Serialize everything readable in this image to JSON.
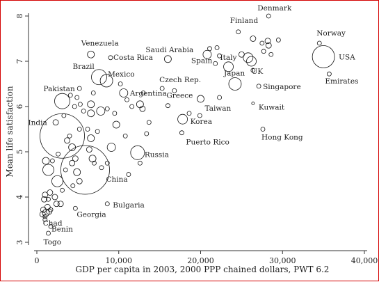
{
  "chart_data": {
    "type": "scatter",
    "title": "",
    "xlabel": "GDP per capita in 2003, 2000 PPP chained dollars, PWT 6.2",
    "ylabel": "Mean life satisfaction",
    "xlim": [
      0,
      40000
    ],
    "ylim": [
      3,
      8.2
    ],
    "xticks": [
      0,
      10000,
      20000,
      30000,
      40000
    ],
    "xtick_labels": [
      "0",
      "10,000",
      "20,000",
      "30,000",
      "40,000"
    ],
    "yticks": [
      3,
      4,
      5,
      6,
      7,
      8
    ],
    "ytick_labels": [
      "3",
      "4",
      "5",
      "6",
      "7",
      "8"
    ],
    "grid": false,
    "marker": "hollow circle sized by population",
    "labeled_points": [
      {
        "label": "Denmark",
        "x": 28300,
        "y": 8.0,
        "size": 3
      },
      {
        "label": "Finland",
        "x": 24600,
        "y": 7.65,
        "size": 3
      },
      {
        "label": "Norway",
        "x": 34500,
        "y": 7.4,
        "size": 3
      },
      {
        "label": "USA",
        "x": 35000,
        "y": 7.1,
        "size": 16
      },
      {
        "label": "Emirates",
        "x": 35700,
        "y": 6.72,
        "size": 3
      },
      {
        "label": "Saudi Arabia",
        "x": 16000,
        "y": 7.05,
        "size": 5
      },
      {
        "label": "Spain",
        "x": 20800,
        "y": 7.15,
        "size": 6
      },
      {
        "label": "Italy",
        "x": 23400,
        "y": 6.88,
        "size": 7
      },
      {
        "label": "UK",
        "x": 26200,
        "y": 7.0,
        "size": 7
      },
      {
        "label": "Japan",
        "x": 24200,
        "y": 6.5,
        "size": 9
      },
      {
        "label": "Singapore",
        "x": 27100,
        "y": 6.45,
        "size": 3
      },
      {
        "label": "Kuwait",
        "x": 26400,
        "y": 6.07,
        "size": 2
      },
      {
        "label": "Hong Kong",
        "x": 27600,
        "y": 5.5,
        "size": 3
      },
      {
        "label": "Venezuela",
        "x": 6600,
        "y": 7.15,
        "size": 5
      },
      {
        "label": "Costa Rica",
        "x": 9000,
        "y": 7.08,
        "size": 3
      },
      {
        "label": "Brazil",
        "x": 7600,
        "y": 6.65,
        "size": 11
      },
      {
        "label": "Mexico",
        "x": 8500,
        "y": 6.57,
        "size": 9
      },
      {
        "label": "Argentina",
        "x": 10600,
        "y": 6.3,
        "size": 6
      },
      {
        "label": "Czech Rep.",
        "x": 15300,
        "y": 6.4,
        "size": 3
      },
      {
        "label": "Greece",
        "x": 16000,
        "y": 6.02,
        "size": 3
      },
      {
        "label": "Taiwan",
        "x": 20000,
        "y": 6.17,
        "size": 5
      },
      {
        "label": "Korea",
        "x": 17800,
        "y": 5.72,
        "size": 7
      },
      {
        "label": "Puerto Rico",
        "x": 17700,
        "y": 5.42,
        "size": 3
      },
      {
        "label": "Russia",
        "x": 12300,
        "y": 4.98,
        "size": 10
      },
      {
        "label": "Pakistan",
        "x": 3100,
        "y": 6.12,
        "size": 11
      },
      {
        "label": "India",
        "x": 3100,
        "y": 5.35,
        "size": 32
      },
      {
        "label": "China",
        "x": 5900,
        "y": 4.6,
        "size": 35
      },
      {
        "label": "Bulgaria",
        "x": 8600,
        "y": 3.85,
        "size": 3
      },
      {
        "label": "Georgia",
        "x": 4700,
        "y": 3.75,
        "size": 3
      },
      {
        "label": "Chad",
        "x": 1000,
        "y": 3.57,
        "size": 3
      },
      {
        "label": "Benin",
        "x": 1700,
        "y": 3.35,
        "size": 3
      },
      {
        "label": "Togo",
        "x": 1400,
        "y": 3.2,
        "size": 3
      }
    ],
    "unlabeled_points": [
      {
        "x": 27500,
        "y": 7.4,
        "size": 3
      },
      {
        "x": 28200,
        "y": 7.45,
        "size": 4
      },
      {
        "x": 28300,
        "y": 7.35,
        "size": 4
      },
      {
        "x": 29500,
        "y": 7.47,
        "size": 3
      },
      {
        "x": 26400,
        "y": 7.5,
        "size": 4
      },
      {
        "x": 27700,
        "y": 7.22,
        "size": 3
      },
      {
        "x": 28600,
        "y": 7.15,
        "size": 3
      },
      {
        "x": 25800,
        "y": 7.08,
        "size": 7
      },
      {
        "x": 25000,
        "y": 7.15,
        "size": 4
      },
      {
        "x": 22000,
        "y": 7.3,
        "size": 3
      },
      {
        "x": 22300,
        "y": 7.12,
        "size": 3
      },
      {
        "x": 21800,
        "y": 6.95,
        "size": 3
      },
      {
        "x": 26400,
        "y": 6.8,
        "size": 3
      },
      {
        "x": 22300,
        "y": 6.2,
        "size": 3
      },
      {
        "x": 21100,
        "y": 7.28,
        "size": 3
      },
      {
        "x": 16800,
        "y": 6.35,
        "size": 3
      },
      {
        "x": 18600,
        "y": 5.85,
        "size": 3
      },
      {
        "x": 19900,
        "y": 5.8,
        "size": 3
      },
      {
        "x": 13000,
        "y": 6.3,
        "size": 3
      },
      {
        "x": 12600,
        "y": 6.05,
        "size": 5
      },
      {
        "x": 12900,
        "y": 5.95,
        "size": 4
      },
      {
        "x": 11600,
        "y": 6.0,
        "size": 3
      },
      {
        "x": 10200,
        "y": 6.5,
        "size": 3
      },
      {
        "x": 11000,
        "y": 6.15,
        "size": 3
      },
      {
        "x": 13700,
        "y": 5.65,
        "size": 3
      },
      {
        "x": 13400,
        "y": 5.4,
        "size": 3
      },
      {
        "x": 10800,
        "y": 5.35,
        "size": 3
      },
      {
        "x": 9100,
        "y": 5.1,
        "size": 6
      },
      {
        "x": 9700,
        "y": 5.6,
        "size": 5
      },
      {
        "x": 9500,
        "y": 5.85,
        "size": 3
      },
      {
        "x": 8600,
        "y": 5.95,
        "size": 3
      },
      {
        "x": 6600,
        "y": 6.05,
        "size": 5
      },
      {
        "x": 6600,
        "y": 5.85,
        "size": 5
      },
      {
        "x": 7800,
        "y": 5.9,
        "size": 6
      },
      {
        "x": 6900,
        "y": 6.3,
        "size": 3
      },
      {
        "x": 5200,
        "y": 6.4,
        "size": 3
      },
      {
        "x": 4900,
        "y": 6.2,
        "size": 3
      },
      {
        "x": 5300,
        "y": 6.05,
        "size": 3
      },
      {
        "x": 4600,
        "y": 6.0,
        "size": 3
      },
      {
        "x": 5700,
        "y": 5.9,
        "size": 3
      },
      {
        "x": 6200,
        "y": 5.5,
        "size": 3
      },
      {
        "x": 6600,
        "y": 5.3,
        "size": 5
      },
      {
        "x": 6400,
        "y": 5.05,
        "size": 4
      },
      {
        "x": 7400,
        "y": 5.45,
        "size": 3
      },
      {
        "x": 7900,
        "y": 4.65,
        "size": 3
      },
      {
        "x": 6800,
        "y": 4.85,
        "size": 5
      },
      {
        "x": 7000,
        "y": 4.75,
        "size": 3
      },
      {
        "x": 8600,
        "y": 4.75,
        "size": 3
      },
      {
        "x": 12600,
        "y": 4.75,
        "size": 3
      },
      {
        "x": 11200,
        "y": 4.5,
        "size": 3
      },
      {
        "x": 4000,
        "y": 5.35,
        "size": 3
      },
      {
        "x": 4300,
        "y": 5.1,
        "size": 5
      },
      {
        "x": 3700,
        "y": 5.25,
        "size": 4
      },
      {
        "x": 4700,
        "y": 4.85,
        "size": 4
      },
      {
        "x": 4300,
        "y": 4.75,
        "size": 4
      },
      {
        "x": 4900,
        "y": 4.55,
        "size": 5
      },
      {
        "x": 5200,
        "y": 4.35,
        "size": 4
      },
      {
        "x": 4400,
        "y": 4.25,
        "size": 3
      },
      {
        "x": 2500,
        "y": 4.35,
        "size": 8
      },
      {
        "x": 1900,
        "y": 4.8,
        "size": 3
      },
      {
        "x": 1400,
        "y": 4.6,
        "size": 8
      },
      {
        "x": 1100,
        "y": 4.8,
        "size": 5
      },
      {
        "x": 1600,
        "y": 4.1,
        "size": 4
      },
      {
        "x": 1000,
        "y": 4.05,
        "size": 4
      },
      {
        "x": 900,
        "y": 3.95,
        "size": 4
      },
      {
        "x": 1400,
        "y": 3.95,
        "size": 3
      },
      {
        "x": 2400,
        "y": 3.85,
        "size": 4
      },
      {
        "x": 2900,
        "y": 3.85,
        "size": 4
      },
      {
        "x": 1300,
        "y": 3.78,
        "size": 4
      },
      {
        "x": 800,
        "y": 3.72,
        "size": 4
      },
      {
        "x": 1700,
        "y": 3.72,
        "size": 3
      },
      {
        "x": 1100,
        "y": 3.65,
        "size": 5
      },
      {
        "x": 700,
        "y": 3.62,
        "size": 4
      },
      {
        "x": 1500,
        "y": 3.68,
        "size": 4
      },
      {
        "x": 1000,
        "y": 3.5,
        "size": 3
      },
      {
        "x": 2200,
        "y": 4.0,
        "size": 4
      },
      {
        "x": 3100,
        "y": 4.15,
        "size": 3
      },
      {
        "x": 3500,
        "y": 4.6,
        "size": 3
      },
      {
        "x": 2600,
        "y": 4.95,
        "size": 3
      },
      {
        "x": 2300,
        "y": 5.65,
        "size": 4
      },
      {
        "x": 3300,
        "y": 5.8,
        "size": 3
      },
      {
        "x": 4100,
        "y": 6.25,
        "size": 3
      },
      {
        "x": 5200,
        "y": 5.5,
        "size": 3
      }
    ]
  }
}
